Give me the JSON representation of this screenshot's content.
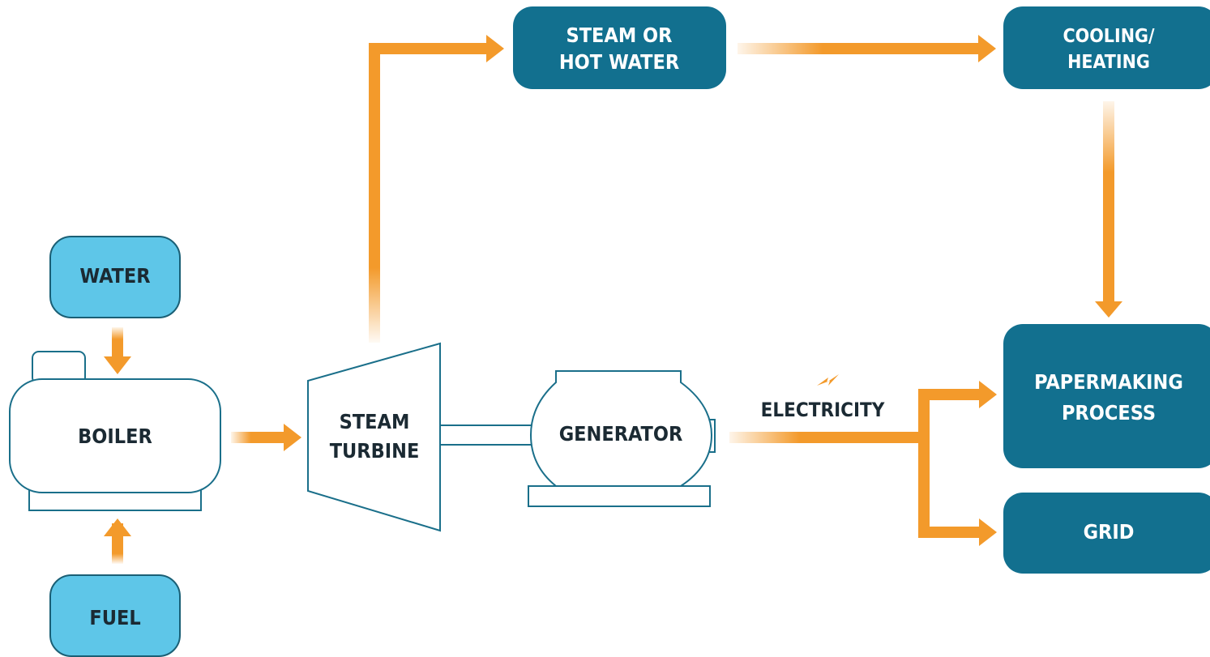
{
  "nodes": [
    {
      "lines": [
        "STEAM OR",
        "HOT WATER"
      ]
    },
    {
      "lines": [
        "COOLING/",
        "HEATING"
      ]
    },
    {
      "lines": [
        "WATER"
      ]
    },
    {
      "lines": [
        "BOILER"
      ]
    },
    {
      "lines": [
        "FUEL"
      ]
    },
    {
      "lines": [
        "STEAM",
        "TURBINE"
      ]
    },
    {
      "lines": [
        "GENERATOR"
      ]
    },
    {
      "lines": [
        "ELECTRICITY"
      ]
    },
    {
      "lines": [
        "PAPERMAKING",
        "PROCESS"
      ]
    },
    {
      "lines": [
        "GRID"
      ]
    }
  ]
}
